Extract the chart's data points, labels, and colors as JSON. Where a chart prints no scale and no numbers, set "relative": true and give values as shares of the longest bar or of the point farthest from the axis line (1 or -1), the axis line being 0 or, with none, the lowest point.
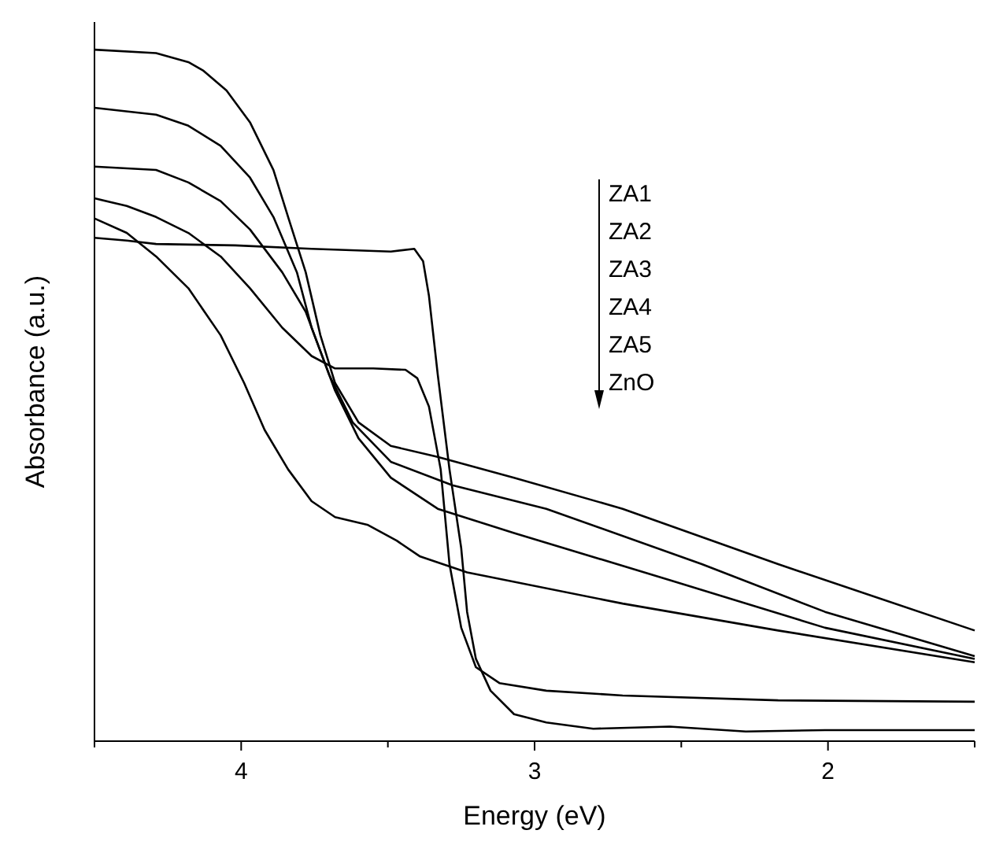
{
  "chart_data": {
    "type": "line",
    "xlabel": "Energy (eV)",
    "ylabel": "Absorbance (a.u.)",
    "relative": true,
    "xlim": [
      4.5,
      1.5
    ],
    "xticks": [
      {
        "value": 4.5,
        "label": null
      },
      4,
      {
        "value": 3.5,
        "label": null
      },
      3,
      {
        "value": 2.5,
        "label": null
      },
      2,
      {
        "value": 1.5,
        "label": null
      }
    ],
    "annotations": [
      "ZA1",
      "ZA2",
      "ZA3",
      "ZA4",
      "ZA5",
      "ZnO"
    ],
    "grid": false,
    "marker": "none",
    "line_style": "solid",
    "series": [
      {
        "color": "#000000",
        "x": [
          4.5,
          4.29,
          4.18,
          4.13,
          4.05,
          3.97,
          3.89,
          3.84,
          3.78,
          3.73,
          3.68,
          3.6,
          3.49,
          3.33,
          3.07,
          2.7,
          2.17,
          1.5
        ],
        "values": [
          1.0,
          0.995,
          0.982,
          0.97,
          0.941,
          0.895,
          0.826,
          0.758,
          0.678,
          0.587,
          0.518,
          0.461,
          0.427,
          0.411,
          0.381,
          0.336,
          0.256,
          0.16
        ]
      },
      {
        "color": "#000000",
        "x": [
          4.5,
          4.29,
          4.18,
          4.07,
          3.97,
          3.89,
          3.81,
          3.76,
          3.7,
          3.62,
          3.49,
          3.28,
          2.96,
          2.43,
          2.01,
          1.5
        ],
        "values": [
          0.916,
          0.906,
          0.89,
          0.861,
          0.815,
          0.758,
          0.678,
          0.598,
          0.53,
          0.461,
          0.404,
          0.37,
          0.336,
          0.256,
          0.187,
          0.123
        ]
      },
      {
        "color": "#000000",
        "x": [
          4.5,
          4.29,
          4.18,
          4.07,
          3.97,
          3.86,
          3.78,
          3.73,
          3.68,
          3.6,
          3.49,
          3.33,
          3.07,
          2.54,
          2.01,
          1.5
        ],
        "values": [
          0.831,
          0.826,
          0.808,
          0.781,
          0.74,
          0.678,
          0.621,
          0.564,
          0.507,
          0.438,
          0.381,
          0.336,
          0.301,
          0.233,
          0.164,
          0.119
        ]
      },
      {
        "color": "#000000",
        "x": [
          4.5,
          4.39,
          4.29,
          4.18,
          4.07,
          3.97,
          3.86,
          3.76,
          3.68,
          3.55,
          3.44,
          3.4,
          3.36,
          3.32,
          3.29,
          3.25,
          3.2,
          3.12,
          2.96,
          2.7,
          2.17,
          1.5
        ],
        "values": [
          0.785,
          0.774,
          0.758,
          0.735,
          0.701,
          0.655,
          0.598,
          0.557,
          0.539,
          0.539,
          0.537,
          0.525,
          0.484,
          0.393,
          0.256,
          0.164,
          0.107,
          0.084,
          0.073,
          0.066,
          0.059,
          0.057
        ]
      },
      {
        "color": "#000000",
        "x": [
          4.5,
          4.39,
          4.29,
          4.18,
          4.07,
          3.99,
          3.92,
          3.84,
          3.76,
          3.68,
          3.57,
          3.47,
          3.39,
          3.23,
          2.7,
          2.17,
          1.5
        ],
        "values": [
          0.756,
          0.735,
          0.701,
          0.655,
          0.587,
          0.518,
          0.45,
          0.393,
          0.347,
          0.324,
          0.313,
          0.29,
          0.267,
          0.244,
          0.199,
          0.16,
          0.114
        ]
      },
      {
        "color": "#000000",
        "x": [
          4.5,
          4.39,
          4.29,
          4.02,
          3.76,
          3.49,
          3.41,
          3.38,
          3.36,
          3.33,
          3.29,
          3.25,
          3.23,
          3.2,
          3.15,
          3.07,
          2.96,
          2.8,
          2.54,
          2.28,
          2.01,
          1.5
        ],
        "values": [
          0.728,
          0.724,
          0.719,
          0.717,
          0.712,
          0.708,
          0.712,
          0.694,
          0.644,
          0.53,
          0.393,
          0.279,
          0.187,
          0.119,
          0.073,
          0.039,
          0.027,
          0.018,
          0.021,
          0.014,
          0.016,
          0.016
        ]
      }
    ]
  }
}
